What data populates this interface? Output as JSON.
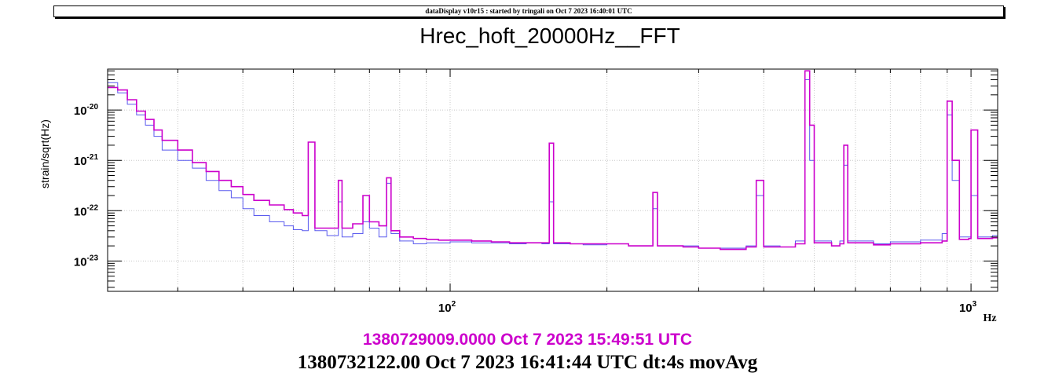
{
  "header": {
    "text": "dataDisplay v10r15 : started by tringali on Oct  7 2023 16:40:01 UTC"
  },
  "chart_data": {
    "type": "line",
    "title": "Hrec_hoft_20000Hz__FFT",
    "xlabel": "Hz",
    "ylabel": "strain/sqrt(Hz)",
    "xscale": "log",
    "yscale": "log",
    "xlim": [
      22,
      1125
    ],
    "ylim": [
      2.5e-24,
      6.5e-20
    ],
    "x_ticks": [
      {
        "value": 100,
        "base": "10",
        "exp": "2"
      },
      {
        "value": 1000,
        "base": "10",
        "exp": "3"
      }
    ],
    "y_ticks": [
      {
        "value": 1e-23,
        "base": "10",
        "exp": "-23"
      },
      {
        "value": 1e-22,
        "base": "10",
        "exp": "-22"
      },
      {
        "value": 1e-21,
        "base": "10",
        "exp": "-21"
      },
      {
        "value": 1e-20,
        "base": "10",
        "exp": "-20"
      }
    ],
    "grid": true,
    "legend": "none",
    "series": [
      {
        "color": "#5a5aee",
        "points": [
          [
            22,
            3.5e-20
          ],
          [
            23,
            2.2e-20
          ],
          [
            24,
            1.3e-20
          ],
          [
            25,
            8e-21
          ],
          [
            26,
            5e-21
          ],
          [
            27,
            3e-21
          ],
          [
            28,
            1.6e-21
          ],
          [
            30,
            1e-21
          ],
          [
            32,
            7e-22
          ],
          [
            34,
            4e-22
          ],
          [
            36,
            2.5e-22
          ],
          [
            38,
            1.8e-22
          ],
          [
            40,
            1.1e-22
          ],
          [
            42,
            8e-23
          ],
          [
            45,
            6e-23
          ],
          [
            48,
            5e-23
          ],
          [
            50,
            4.2e-23
          ],
          [
            52,
            4e-23
          ],
          [
            53.4,
            2.3e-21
          ],
          [
            55,
            4e-23
          ],
          [
            58,
            3.2e-23
          ],
          [
            60,
            3.2e-23
          ],
          [
            61,
            1.5e-22
          ],
          [
            62,
            3e-23
          ],
          [
            65,
            3.5e-23
          ],
          [
            68,
            6e-23
          ],
          [
            70,
            4.5e-23
          ],
          [
            73,
            3e-23
          ],
          [
            75.5,
            3.5e-22
          ],
          [
            77,
            3.5e-23
          ],
          [
            80,
            2.5e-23
          ],
          [
            85,
            2.2e-23
          ],
          [
            90,
            2.3e-23
          ],
          [
            95,
            2.3e-23
          ],
          [
            100,
            2.4e-23
          ],
          [
            110,
            2.3e-23
          ],
          [
            120,
            2.3e-23
          ],
          [
            130,
            2.2e-23
          ],
          [
            140,
            2.3e-23
          ],
          [
            150,
            2.2e-23
          ],
          [
            155,
            1.5e-22
          ],
          [
            158,
            2.2e-23
          ],
          [
            170,
            2.2e-23
          ],
          [
            180,
            2.1e-23
          ],
          [
            200,
            2.2e-23
          ],
          [
            220,
            2e-23
          ],
          [
            240,
            2e-23
          ],
          [
            245,
            1.1e-22
          ],
          [
            250,
            2e-23
          ],
          [
            280,
            2e-23
          ],
          [
            300,
            1.8e-23
          ],
          [
            330,
            1.8e-23
          ],
          [
            370,
            2e-23
          ],
          [
            387,
            2e-22
          ],
          [
            400,
            2e-23
          ],
          [
            430,
            1.9e-23
          ],
          [
            460,
            2.5e-23
          ],
          [
            480,
            4e-20
          ],
          [
            490,
            1e-21
          ],
          [
            500,
            2.5e-23
          ],
          [
            540,
            2e-23
          ],
          [
            560,
            2.5e-23
          ],
          [
            570,
            8e-22
          ],
          [
            580,
            2.5e-23
          ],
          [
            650,
            2.2e-23
          ],
          [
            700,
            2.4e-23
          ],
          [
            800,
            2.6e-23
          ],
          [
            880,
            3.5e-23
          ],
          [
            900,
            8e-21
          ],
          [
            920,
            4e-22
          ],
          [
            950,
            3e-23
          ],
          [
            990,
            3e-23
          ],
          [
            1000,
            2e-22
          ],
          [
            1030,
            3e-23
          ],
          [
            1100,
            3.2e-23
          ],
          [
            1125,
            3.5e-23
          ]
        ]
      },
      {
        "color": "#cc00cc",
        "points": [
          [
            22,
            2.8e-20
          ],
          [
            23,
            2.5e-20
          ],
          [
            24,
            1.6e-20
          ],
          [
            25,
            9.5e-21
          ],
          [
            26,
            6.5e-21
          ],
          [
            27,
            4e-21
          ],
          [
            28,
            2.5e-21
          ],
          [
            30,
            1.6e-21
          ],
          [
            32,
            9e-22
          ],
          [
            34,
            6e-22
          ],
          [
            36,
            4e-22
          ],
          [
            38,
            3e-22
          ],
          [
            40,
            2.1e-22
          ],
          [
            42,
            1.6e-22
          ],
          [
            45,
            1.3e-22
          ],
          [
            48,
            1.05e-22
          ],
          [
            50,
            9e-23
          ],
          [
            52,
            8e-23
          ],
          [
            53.4,
            2.3e-21
          ],
          [
            55,
            4.5e-23
          ],
          [
            58,
            4.5e-23
          ],
          [
            60,
            4.5e-23
          ],
          [
            61,
            4e-22
          ],
          [
            62,
            4.5e-23
          ],
          [
            65,
            5.5e-23
          ],
          [
            68,
            2e-22
          ],
          [
            70,
            6e-23
          ],
          [
            73,
            5e-23
          ],
          [
            75.5,
            4.5e-22
          ],
          [
            77,
            4e-23
          ],
          [
            80,
            3e-23
          ],
          [
            85,
            2.8e-23
          ],
          [
            90,
            2.7e-23
          ],
          [
            95,
            2.6e-23
          ],
          [
            100,
            2.6e-23
          ],
          [
            110,
            2.5e-23
          ],
          [
            120,
            2.4e-23
          ],
          [
            130,
            2.3e-23
          ],
          [
            140,
            2.3e-23
          ],
          [
            150,
            2.3e-23
          ],
          [
            155,
            2.2e-21
          ],
          [
            158,
            2.3e-23
          ],
          [
            170,
            2.2e-23
          ],
          [
            180,
            2.2e-23
          ],
          [
            200,
            2.2e-23
          ],
          [
            220,
            2e-23
          ],
          [
            240,
            2e-23
          ],
          [
            245,
            2.3e-22
          ],
          [
            250,
            2e-23
          ],
          [
            280,
            1.9e-23
          ],
          [
            300,
            1.8e-23
          ],
          [
            330,
            1.7e-23
          ],
          [
            370,
            1.9e-23
          ],
          [
            387,
            4e-22
          ],
          [
            400,
            1.9e-23
          ],
          [
            430,
            1.9e-23
          ],
          [
            460,
            2.2e-23
          ],
          [
            480,
            6e-20
          ],
          [
            490,
            5e-21
          ],
          [
            500,
            2.3e-23
          ],
          [
            540,
            2e-23
          ],
          [
            560,
            2.2e-23
          ],
          [
            570,
            2e-21
          ],
          [
            580,
            2.3e-23
          ],
          [
            650,
            2.1e-23
          ],
          [
            700,
            2.2e-23
          ],
          [
            800,
            2.3e-23
          ],
          [
            880,
            2.5e-23
          ],
          [
            900,
            1.5e-20
          ],
          [
            920,
            1e-21
          ],
          [
            950,
            2.7e-23
          ],
          [
            990,
            2.8e-23
          ],
          [
            1000,
            4e-21
          ],
          [
            1030,
            2.8e-23
          ],
          [
            1100,
            2.9e-23
          ],
          [
            1125,
            3e-23
          ]
        ]
      }
    ]
  },
  "footer": {
    "timestamp_magenta": "1380729009.0000 Oct 7 2023 15:49:51 UTC",
    "timestamp_black": "1380732122.00 Oct 7 2023 16:41:44 UTC dt:4s movAvg",
    "magenta_color": "#cc00cc"
  }
}
